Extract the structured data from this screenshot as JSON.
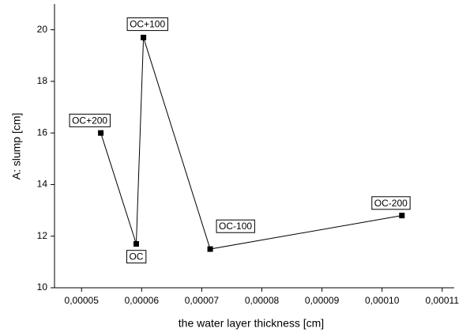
{
  "chart_data": {
    "type": "line",
    "x_label": "the water layer thickness [cm]",
    "y_label": "A: slump [cm]",
    "xlim": [
      4.55e-05,
      0.000112
    ],
    "ylim": [
      10,
      21
    ],
    "xticks": [
      {
        "value": 5e-05,
        "label": "0,00005"
      },
      {
        "value": 6e-05,
        "label": "0,00006"
      },
      {
        "value": 7e-05,
        "label": "0,00007"
      },
      {
        "value": 8e-05,
        "label": "0,00008"
      },
      {
        "value": 9e-05,
        "label": "0,00009"
      },
      {
        "value": 0.0001,
        "label": "0,00010"
      },
      {
        "value": 0.00011,
        "label": "0,00011"
      }
    ],
    "yticks": [
      10,
      12,
      14,
      16,
      18,
      20
    ],
    "series": [
      {
        "color": "#000000",
        "x": [
          5.32e-05,
          5.91e-05,
          6.03e-05,
          7.14e-05,
          0.0001033
        ],
        "values": [
          16.0,
          11.7,
          19.7,
          11.5,
          12.8
        ],
        "point_labels": [
          "OC+200",
          "OC",
          "OC+100",
          "OC-100",
          "OC-200"
        ]
      }
    ]
  }
}
